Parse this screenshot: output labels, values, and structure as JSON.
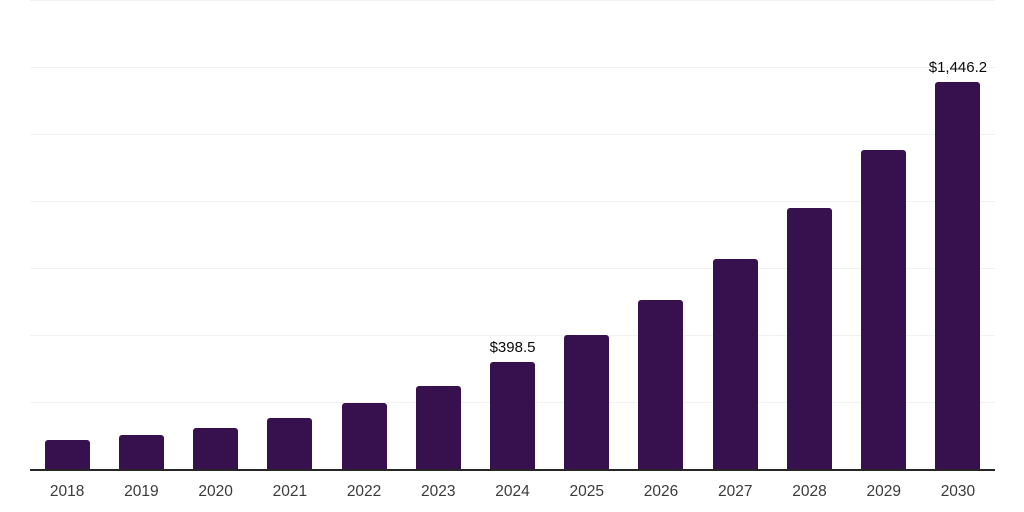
{
  "chart_data": {
    "type": "bar",
    "title": "",
    "xlabel": "",
    "ylabel": "",
    "categories": [
      "2018",
      "2019",
      "2020",
      "2021",
      "2022",
      "2023",
      "2024",
      "2025",
      "2026",
      "2027",
      "2028",
      "2029",
      "2030"
    ],
    "values": [
      108,
      127,
      152,
      190,
      245,
      312,
      398.5,
      501,
      633,
      786,
      974,
      1190,
      1446.2
    ],
    "data_labels": {
      "2024": "$398.5",
      "2030": "$1,446.2"
    },
    "ylim": [
      0,
      1750
    ],
    "grid_step": 250,
    "grid": "on",
    "y_tick_labels": "none",
    "legend": "none",
    "currency_prefix": "$"
  },
  "colors": {
    "background": "#ffffff",
    "bar": "#36114d",
    "grid_line": "#f2f2f2",
    "axis_line": "#262626",
    "tick_label": "#3a3a3a",
    "data_label": "#0a0a0a"
  }
}
